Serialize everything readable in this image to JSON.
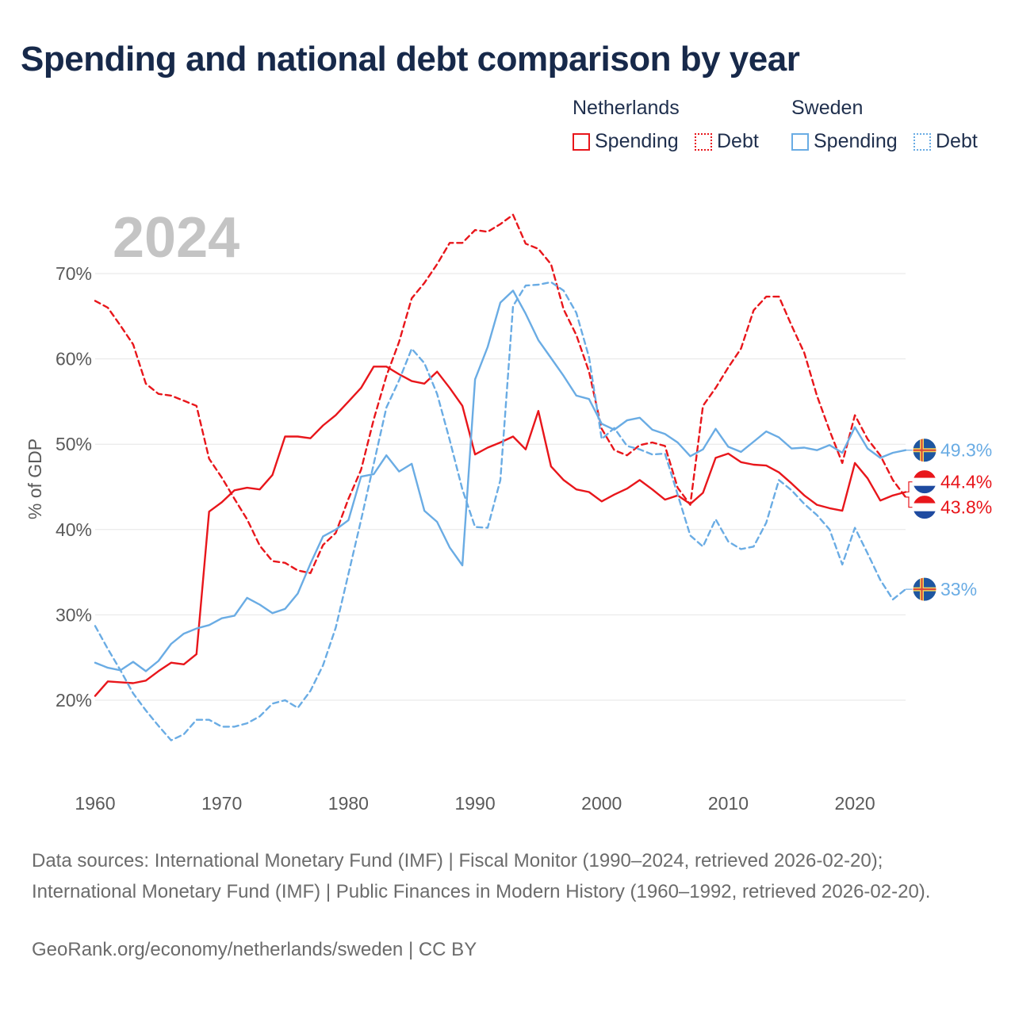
{
  "title": "Spending and national debt comparison by year",
  "legend": {
    "groups": [
      {
        "name": "Netherlands",
        "items": [
          {
            "label": "Spending",
            "style": "solid",
            "color": "#e8161b"
          },
          {
            "label": "Debt",
            "style": "dotted",
            "color": "#e8161b"
          }
        ]
      },
      {
        "name": "Sweden",
        "items": [
          {
            "label": "Spending",
            "style": "solid",
            "color": "#6aace4"
          },
          {
            "label": "Debt",
            "style": "dotted",
            "color": "#6aace4"
          }
        ]
      }
    ]
  },
  "sources": "Data sources: International Monetary Fund (IMF) | Fiscal Monitor (1990–2024, retrieved 2026-02-20); International Monetary Fund (IMF) | Public Finances in Modern History (1960–1992, retrieved 2026-02-20).",
  "credit": "GeoRank.org/economy/netherlands/sweden | CC BY",
  "chart_data": {
    "type": "line",
    "year_label": "2024",
    "ylabel": "% of GDP",
    "xlim": [
      1960,
      2024
    ],
    "ylim": [
      10,
      75
    ],
    "x_ticks": [
      1960,
      1970,
      1980,
      1990,
      2000,
      2010,
      2020
    ],
    "y_ticks": [
      20,
      30,
      40,
      50,
      60,
      70
    ],
    "y_tick_labels": [
      "20%",
      "30%",
      "40%",
      "50%",
      "60%",
      "70%"
    ],
    "x": [
      1960,
      1961,
      1962,
      1963,
      1964,
      1965,
      1966,
      1967,
      1968,
      1969,
      1970,
      1971,
      1972,
      1973,
      1974,
      1975,
      1976,
      1977,
      1978,
      1979,
      1980,
      1981,
      1982,
      1983,
      1984,
      1985,
      1986,
      1987,
      1988,
      1989,
      1990,
      1991,
      1992,
      1993,
      1994,
      1995,
      1996,
      1997,
      1998,
      1999,
      2000,
      2001,
      2002,
      2003,
      2004,
      2005,
      2006,
      2007,
      2008,
      2009,
      2010,
      2011,
      2012,
      2013,
      2014,
      2015,
      2016,
      2017,
      2018,
      2019,
      2020,
      2021,
      2022,
      2023,
      2024
    ],
    "series": [
      {
        "name": "Netherlands Spending",
        "country": "Netherlands",
        "measure": "Spending",
        "color": "#e8161b",
        "dash": "solid",
        "values": [
          20.5,
          22.2,
          22.1,
          22.0,
          22.3,
          23.4,
          24.4,
          24.2,
          25.4,
          42.1,
          43.2,
          44.6,
          44.9,
          44.7,
          46.4,
          50.9,
          50.9,
          50.7,
          52.2,
          53.4,
          55.0,
          56.6,
          59.1,
          59.1,
          58.2,
          57.4,
          57.1,
          58.5,
          56.6,
          54.5,
          48.8,
          49.6,
          50.2,
          50.9,
          49.4,
          53.9,
          47.4,
          45.8,
          44.7,
          44.4,
          43.3,
          44.1,
          44.8,
          45.8,
          44.7,
          43.5,
          44.0,
          43.0,
          44.3,
          48.4,
          48.9,
          47.9,
          47.6,
          47.5,
          46.7,
          45.4,
          44.0,
          42.9,
          42.5,
          42.2,
          47.8,
          46.0,
          43.4,
          44.0,
          44.4
        ]
      },
      {
        "name": "Netherlands Debt",
        "country": "Netherlands",
        "measure": "Debt",
        "color": "#e8161b",
        "dash": "dashed",
        "values": [
          66.8,
          66.0,
          63.9,
          61.7,
          57.1,
          55.9,
          55.7,
          55.1,
          54.5,
          48.3,
          46.1,
          43.6,
          41.2,
          38.1,
          36.3,
          36.1,
          35.2,
          34.9,
          38.2,
          39.6,
          43.6,
          47.0,
          52.9,
          58.0,
          62.0,
          67.1,
          68.9,
          71.1,
          73.6,
          73.6,
          75.1,
          74.9,
          75.8,
          76.9,
          73.5,
          72.9,
          71.1,
          65.8,
          62.8,
          58.5,
          51.8,
          49.3,
          48.7,
          49.9,
          50.2,
          49.8,
          44.9,
          42.9,
          54.5,
          56.6,
          59.0,
          61.2,
          65.7,
          67.3,
          67.3,
          63.9,
          60.7,
          55.7,
          51.6,
          47.8,
          53.4,
          50.6,
          48.7,
          45.8,
          43.8
        ]
      },
      {
        "name": "Sweden Spending",
        "country": "Sweden",
        "measure": "Spending",
        "color": "#6aace4",
        "dash": "solid",
        "values": [
          24.4,
          23.8,
          23.5,
          24.5,
          23.4,
          24.6,
          26.6,
          27.8,
          28.4,
          28.8,
          29.6,
          29.9,
          32.0,
          31.2,
          30.2,
          30.7,
          32.5,
          36.0,
          39.2,
          40.0,
          41.1,
          46.2,
          46.5,
          48.7,
          46.8,
          47.7,
          42.2,
          40.9,
          37.9,
          35.8,
          57.6,
          61.4,
          66.6,
          68.0,
          65.3,
          62.2,
          60.1,
          58.0,
          55.7,
          55.3,
          52.4,
          51.7,
          52.8,
          53.1,
          51.7,
          51.2,
          50.2,
          48.6,
          49.4,
          51.8,
          49.7,
          49.1,
          50.3,
          51.5,
          50.8,
          49.5,
          49.6,
          49.3,
          49.9,
          49.0,
          52.0,
          49.5,
          48.4,
          49.0,
          49.3
        ]
      },
      {
        "name": "Sweden Debt",
        "country": "Sweden",
        "measure": "Debt",
        "color": "#6aace4",
        "dash": "dashed",
        "values": [
          28.7,
          26.0,
          23.5,
          20.8,
          18.8,
          17.0,
          15.3,
          16.0,
          17.7,
          17.7,
          16.9,
          16.9,
          17.3,
          18.1,
          19.6,
          20.0,
          19.1,
          21.1,
          24.1,
          28.5,
          34.8,
          41.1,
          47.7,
          54.3,
          57.5,
          61.2,
          59.5,
          55.9,
          50.5,
          44.7,
          40.3,
          40.2,
          45.8,
          66.2,
          68.6,
          68.7,
          69.0,
          68.0,
          65.4,
          60.2,
          50.6,
          51.9,
          49.8,
          49.4,
          48.8,
          48.9,
          44.1,
          39.3,
          38.0,
          41.2,
          38.6,
          37.7,
          38.0,
          40.8,
          45.8,
          44.6,
          43.0,
          41.7,
          40.0,
          35.9,
          40.2,
          37.2,
          34.1,
          31.8,
          33.0
        ]
      }
    ],
    "end_labels": [
      {
        "text": "49.3%",
        "series": "Sweden Spending",
        "flag": "sweden"
      },
      {
        "text": "44.4%",
        "series": "Netherlands Spending",
        "flag": "netherlands"
      },
      {
        "text": "43.8%",
        "series": "Netherlands Debt",
        "flag": "netherlands"
      },
      {
        "text": "33%",
        "series": "Sweden Debt",
        "flag": "sweden"
      }
    ]
  }
}
